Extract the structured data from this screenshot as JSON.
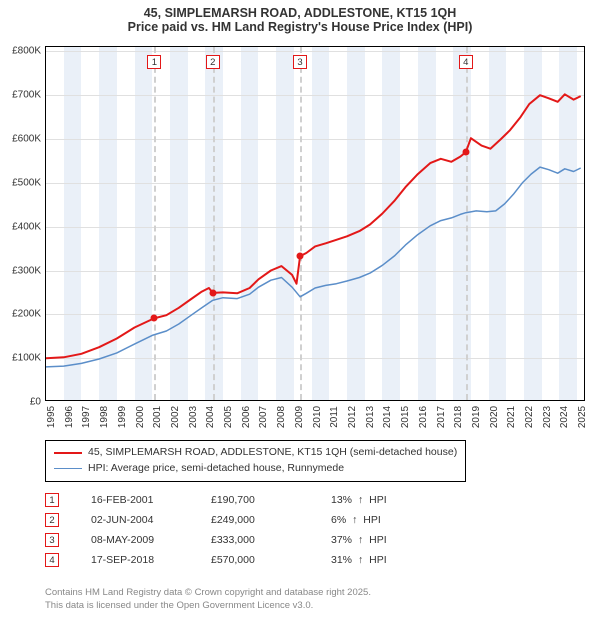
{
  "title_line1": "45, SIMPLEMARSH ROAD, ADDLESTONE, KT15 1QH",
  "title_line2": "Price paid vs. HM Land Registry's House Price Index (HPI)",
  "chart": {
    "type": "line",
    "xlim": [
      1995,
      2025.5
    ],
    "ylim": [
      0,
      810000
    ],
    "ytick_step": 100000,
    "yticks": [
      "£0",
      "£100K",
      "£200K",
      "£300K",
      "£400K",
      "£500K",
      "£600K",
      "£700K",
      "£800K"
    ],
    "xticks": [
      1995,
      1996,
      1997,
      1998,
      1999,
      2000,
      2001,
      2002,
      2003,
      2004,
      2005,
      2006,
      2007,
      2008,
      2009,
      2010,
      2011,
      2012,
      2013,
      2014,
      2015,
      2016,
      2017,
      2018,
      2019,
      2020,
      2021,
      2022,
      2023,
      2024,
      2025
    ],
    "band_color": "#eaf0f8",
    "grid_color": "#e0e0e0",
    "background_color": "#ffffff",
    "series_property": {
      "color": "#e31818",
      "line_width": 2,
      "points": [
        [
          1995.0,
          100000
        ],
        [
          1996.0,
          102000
        ],
        [
          1997.0,
          110000
        ],
        [
          1998.0,
          125000
        ],
        [
          1999.0,
          145000
        ],
        [
          2000.0,
          170000
        ],
        [
          2001.1,
          190700
        ],
        [
          2001.8,
          198000
        ],
        [
          2002.5,
          215000
        ],
        [
          2003.2,
          235000
        ],
        [
          2003.8,
          252000
        ],
        [
          2004.2,
          260000
        ],
        [
          2004.42,
          249000
        ],
        [
          2005.0,
          250000
        ],
        [
          2005.8,
          248000
        ],
        [
          2006.5,
          260000
        ],
        [
          2007.0,
          280000
        ],
        [
          2007.7,
          300000
        ],
        [
          2008.3,
          310000
        ],
        [
          2008.9,
          290000
        ],
        [
          2009.15,
          270000
        ],
        [
          2009.35,
          333000
        ],
        [
          2009.7,
          340000
        ],
        [
          2010.2,
          355000
        ],
        [
          2010.8,
          362000
        ],
        [
          2011.4,
          370000
        ],
        [
          2012.0,
          378000
        ],
        [
          2012.7,
          390000
        ],
        [
          2013.3,
          405000
        ],
        [
          2014.0,
          430000
        ],
        [
          2014.7,
          460000
        ],
        [
          2015.3,
          490000
        ],
        [
          2016.0,
          520000
        ],
        [
          2016.7,
          545000
        ],
        [
          2017.3,
          555000
        ],
        [
          2017.9,
          548000
        ],
        [
          2018.4,
          560000
        ],
        [
          2018.71,
          570000
        ],
        [
          2019.0,
          602000
        ],
        [
          2019.6,
          585000
        ],
        [
          2020.1,
          578000
        ],
        [
          2020.7,
          600000
        ],
        [
          2021.2,
          620000
        ],
        [
          2021.8,
          650000
        ],
        [
          2022.3,
          680000
        ],
        [
          2022.9,
          700000
        ],
        [
          2023.4,
          693000
        ],
        [
          2023.9,
          685000
        ],
        [
          2024.3,
          702000
        ],
        [
          2024.8,
          690000
        ],
        [
          2025.2,
          698000
        ]
      ]
    },
    "series_hpi": {
      "color": "#5b8ec9",
      "line_width": 1.5,
      "points": [
        [
          1995.0,
          80000
        ],
        [
          1996.0,
          82000
        ],
        [
          1997.0,
          88000
        ],
        [
          1998.0,
          98000
        ],
        [
          1999.0,
          112000
        ],
        [
          2000.0,
          132000
        ],
        [
          2001.0,
          152000
        ],
        [
          2001.8,
          162000
        ],
        [
          2002.5,
          178000
        ],
        [
          2003.2,
          198000
        ],
        [
          2003.8,
          215000
        ],
        [
          2004.42,
          232000
        ],
        [
          2005.0,
          238000
        ],
        [
          2005.8,
          236000
        ],
        [
          2006.5,
          246000
        ],
        [
          2007.0,
          262000
        ],
        [
          2007.7,
          278000
        ],
        [
          2008.3,
          284000
        ],
        [
          2008.9,
          262000
        ],
        [
          2009.35,
          240000
        ],
        [
          2009.7,
          248000
        ],
        [
          2010.2,
          260000
        ],
        [
          2010.8,
          266000
        ],
        [
          2011.4,
          270000
        ],
        [
          2012.0,
          276000
        ],
        [
          2012.7,
          284000
        ],
        [
          2013.3,
          294000
        ],
        [
          2014.0,
          312000
        ],
        [
          2014.7,
          334000
        ],
        [
          2015.3,
          358000
        ],
        [
          2016.0,
          382000
        ],
        [
          2016.7,
          402000
        ],
        [
          2017.3,
          414000
        ],
        [
          2017.9,
          420000
        ],
        [
          2018.4,
          428000
        ],
        [
          2018.71,
          432000
        ],
        [
          2019.3,
          436000
        ],
        [
          2019.9,
          434000
        ],
        [
          2020.4,
          436000
        ],
        [
          2020.9,
          452000
        ],
        [
          2021.4,
          474000
        ],
        [
          2021.9,
          500000
        ],
        [
          2022.4,
          520000
        ],
        [
          2022.9,
          536000
        ],
        [
          2023.4,
          530000
        ],
        [
          2023.9,
          522000
        ],
        [
          2024.3,
          532000
        ],
        [
          2024.8,
          526000
        ],
        [
          2025.2,
          534000
        ]
      ]
    },
    "transactions": [
      {
        "n": "1",
        "year": 2001.12,
        "date": "16-FEB-2001",
        "price": 190700,
        "price_label": "£190,700",
        "pct": "13%",
        "dir": "↑",
        "vs": "HPI"
      },
      {
        "n": "2",
        "year": 2004.42,
        "date": "02-JUN-2004",
        "price": 249000,
        "price_label": "£249,000",
        "pct": "6%",
        "dir": "↑",
        "vs": "HPI"
      },
      {
        "n": "3",
        "year": 2009.35,
        "date": "08-MAY-2009",
        "price": 333000,
        "price_label": "£333,000",
        "pct": "37%",
        "dir": "↑",
        "vs": "HPI"
      },
      {
        "n": "4",
        "year": 2018.71,
        "date": "17-SEP-2018",
        "price": 570000,
        "price_label": "£570,000",
        "pct": "31%",
        "dir": "↑",
        "vs": "HPI"
      }
    ],
    "marker_border_color": "#e31818",
    "marker_text_color": "#333",
    "marker_dash_color": "#d0d0d0",
    "tick_fontsize": 10
  },
  "legend": {
    "items": [
      {
        "color": "#e31818",
        "width": 2,
        "label": "45, SIMPLEMARSH ROAD, ADDLESTONE, KT15 1QH (semi-detached house)"
      },
      {
        "color": "#5b8ec9",
        "width": 1.5,
        "label": "HPI: Average price, semi-detached house, Runnymede"
      }
    ]
  },
  "footnote_line1": "Contains HM Land Registry data © Crown copyright and database right 2025.",
  "footnote_line2": "This data is licensed under the Open Government Licence v3.0."
}
